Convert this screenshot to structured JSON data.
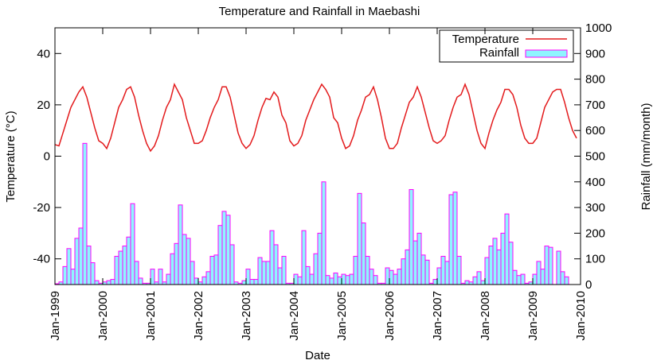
{
  "chart_data": {
    "type": "bar+line",
    "title": "Temperature and Rainfall in Maebashi",
    "xlabel": "Date",
    "ylabel_left": "Temperature (°C)",
    "ylabel_right": "Rainfall (mm/month)",
    "ylim_left": [
      -50,
      50
    ],
    "ylim_right": [
      0,
      1000
    ],
    "yticks_left": [
      -40,
      -20,
      0,
      20,
      40
    ],
    "yticks_right": [
      0,
      100,
      200,
      300,
      400,
      500,
      600,
      700,
      800,
      900,
      1000
    ],
    "xticks": [
      "Jan-1999",
      "Jan-2000",
      "Jan-2001",
      "Jan-2002",
      "Jan-2003",
      "Jan-2004",
      "Jan-2005",
      "Jan-2006",
      "Jan-2007",
      "Jan-2008",
      "Jan-2009",
      "Jan-2010"
    ],
    "grid": false,
    "legend_position": "top-right",
    "colors": {
      "temperature": "#e31a1c",
      "rainfall_fill": "#8ff5ff",
      "rainfall_edge": "#ff00ff"
    },
    "series": [
      {
        "name": "Temperature",
        "unit": "°C",
        "values": [
          4.5,
          4,
          9,
          14,
          19,
          22,
          25,
          27,
          23,
          17,
          11,
          6,
          5,
          3,
          7,
          13,
          19,
          22,
          26,
          27,
          23,
          16,
          10,
          5,
          2,
          4,
          8,
          14,
          19,
          22,
          28,
          25,
          22,
          15,
          10,
          5,
          5,
          6,
          10,
          15,
          19,
          22,
          27,
          27,
          23,
          16,
          9,
          5,
          3,
          4.5,
          8,
          14,
          19,
          22.5,
          22,
          25,
          23,
          16,
          13,
          6,
          4,
          5,
          8,
          14,
          18,
          22,
          25,
          28,
          26,
          23,
          15,
          13,
          7,
          3,
          4,
          8,
          14,
          18,
          23,
          24,
          27,
          22,
          15,
          7,
          3,
          3,
          5,
          11,
          16,
          21,
          23,
          27,
          23,
          17,
          11,
          6,
          5,
          6,
          8,
          14,
          19,
          23,
          24,
          28,
          24,
          17,
          10,
          5,
          3,
          9,
          14,
          18,
          21,
          26,
          26,
          24,
          19,
          12,
          7,
          5,
          5,
          7,
          13,
          19,
          22,
          25,
          26,
          26,
          21,
          15,
          10,
          7
        ]
      },
      {
        "name": "Rainfall",
        "unit": "mm/month",
        "values": [
          3,
          10,
          70,
          140,
          60,
          180,
          220,
          550,
          150,
          85,
          15,
          5,
          10,
          15,
          20,
          110,
          130,
          150,
          185,
          315,
          90,
          25,
          5,
          5,
          60,
          10,
          60,
          10,
          40,
          120,
          160,
          310,
          195,
          180,
          90,
          25,
          10,
          30,
          50,
          110,
          115,
          230,
          285,
          270,
          155,
          10,
          5,
          15,
          60,
          20,
          20,
          105,
          90,
          90,
          210,
          155,
          65,
          110,
          5,
          5,
          40,
          30,
          210,
          70,
          40,
          120,
          200,
          400,
          35,
          25,
          45,
          30,
          40,
          35,
          40,
          110,
          355,
          240,
          110,
          60,
          35,
          5,
          5,
          65,
          55,
          40,
          60,
          100,
          135,
          370,
          170,
          200,
          115,
          95,
          5,
          20,
          65,
          110,
          90,
          350,
          360,
          110,
          5,
          15,
          10,
          30,
          50,
          15,
          105,
          150,
          180,
          135,
          200,
          275,
          165,
          55,
          35,
          40,
          5,
          10,
          40,
          90,
          60,
          150,
          145,
          0,
          130,
          50,
          30,
          0,
          0,
          0
        ]
      }
    ]
  }
}
